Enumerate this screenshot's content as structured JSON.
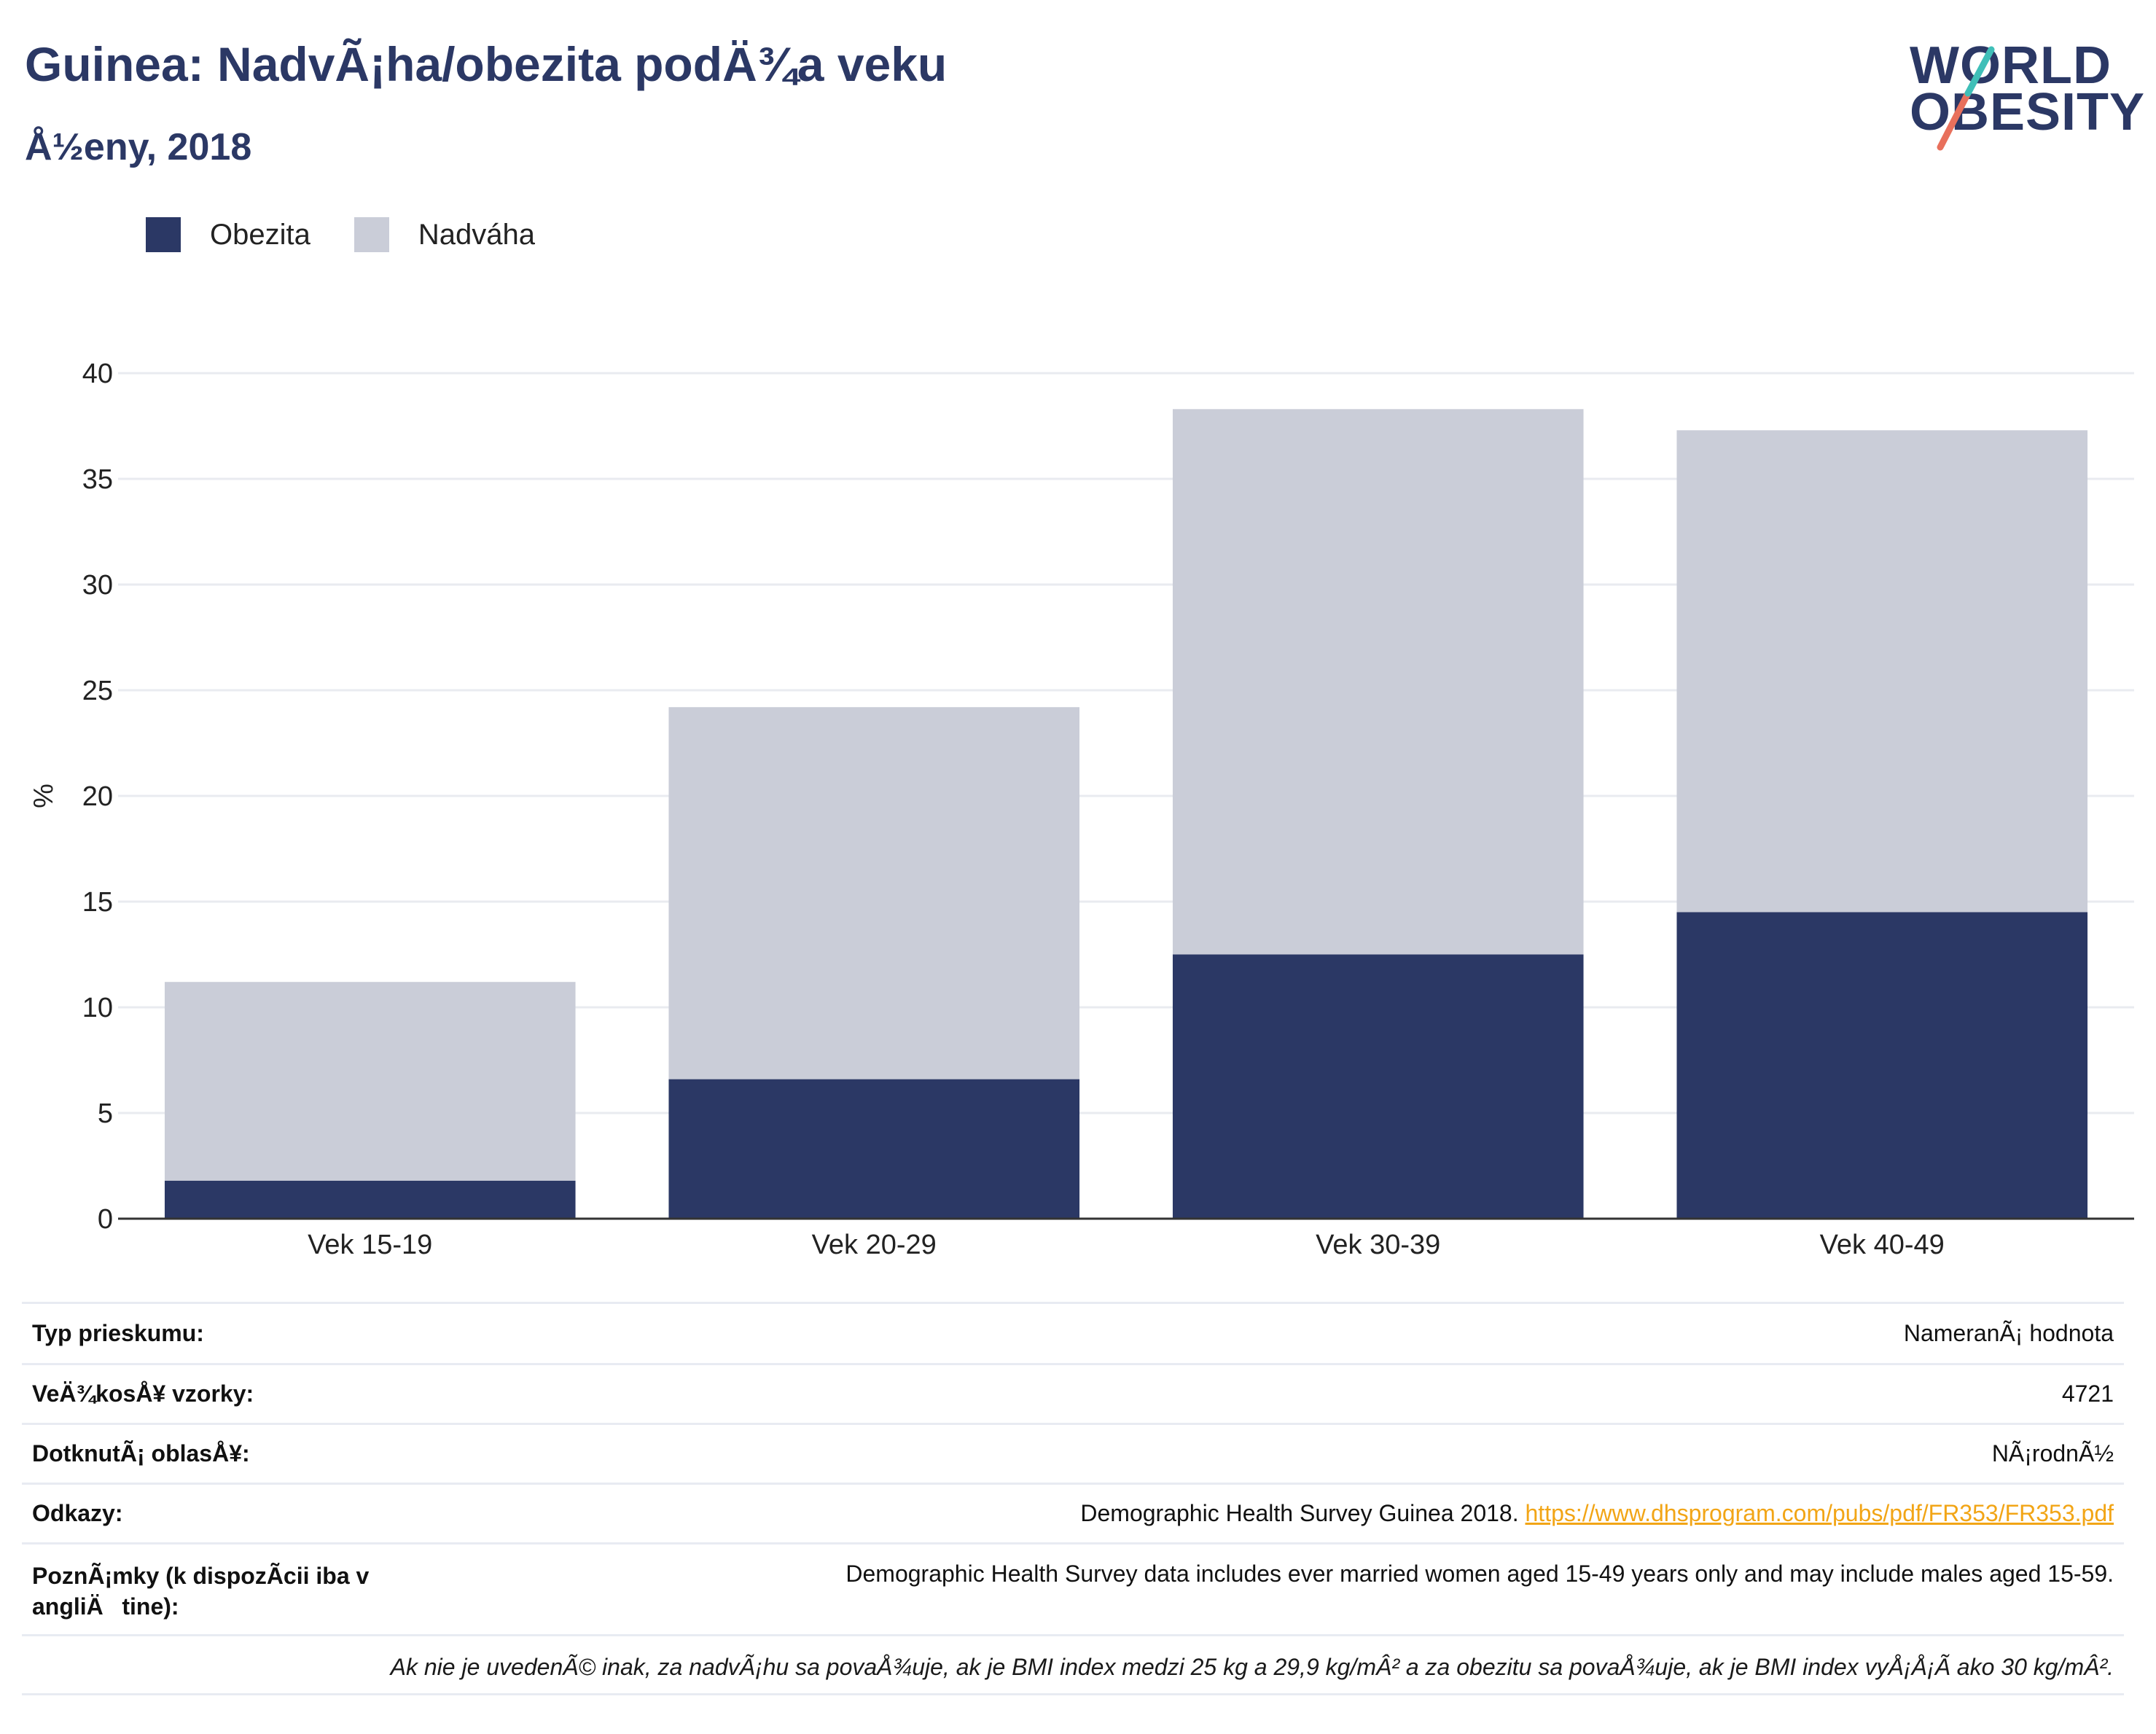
{
  "header": {
    "title": "Guinea: NadvÃ¡ha/obezita podÄ¾a veku",
    "subtitle": "Å½eny, 2018"
  },
  "logo": {
    "line1": "WORLD",
    "line2": "OBESITY"
  },
  "legend": [
    {
      "label": "Obezita",
      "color": "#2b3865"
    },
    {
      "label": "Nadváha",
      "color": "#cacdd8"
    }
  ],
  "chart_data": {
    "type": "bar",
    "stacked": true,
    "categories": [
      "Vek 15-19",
      "Vek 20-29",
      "Vek 30-39",
      "Vek 40-49"
    ],
    "series": [
      {
        "name": "Obezita",
        "values": [
          1.8,
          6.6,
          12.5,
          14.5
        ],
        "color": "#2b3865"
      },
      {
        "name": "Nadváha",
        "values": [
          9.4,
          17.6,
          25.8,
          22.8
        ],
        "color": "#cacdd8"
      }
    ],
    "ylabel": "%",
    "ylim": [
      0,
      40
    ],
    "yticks": [
      0,
      5,
      10,
      15,
      20,
      25,
      30,
      35,
      40
    ],
    "grid": true,
    "legend_position": "top-left"
  },
  "info_table": [
    {
      "label": "Typ prieskumu:",
      "value": "NameranÃ¡ hodnota"
    },
    {
      "label": "VeÄ¾kosÅ¥ vzorky:",
      "value": "4721"
    },
    {
      "label": "DotknutÃ¡ oblasÅ¥:",
      "value": "NÃ¡rodnÃ½"
    },
    {
      "label": "Odkazy:",
      "value": "Demographic Health Survey Guinea 2018.",
      "link": "https://www.dhsprogram.com/pubs/pdf/FR353/FR353.pdf"
    },
    {
      "label": "PoznÃ¡mky (k dispozÃ­cii iba v angliÄtine):",
      "value": "Demographic Health Survey data includes ever married women aged 15-49 years only and may include males aged 15-59."
    }
  ],
  "footnote": "Ak nie je uvedenÃ© inak, za nadvÃ¡hu sa povaÅ¾uje, ak je BMI index medzi 25 kg a 29,9 kg/mÂ² a za obezitu sa povaÅ¾uje, ak je BMI index vyÅ¡Å¡Ã­ ako 30 kg/mÂ²."
}
